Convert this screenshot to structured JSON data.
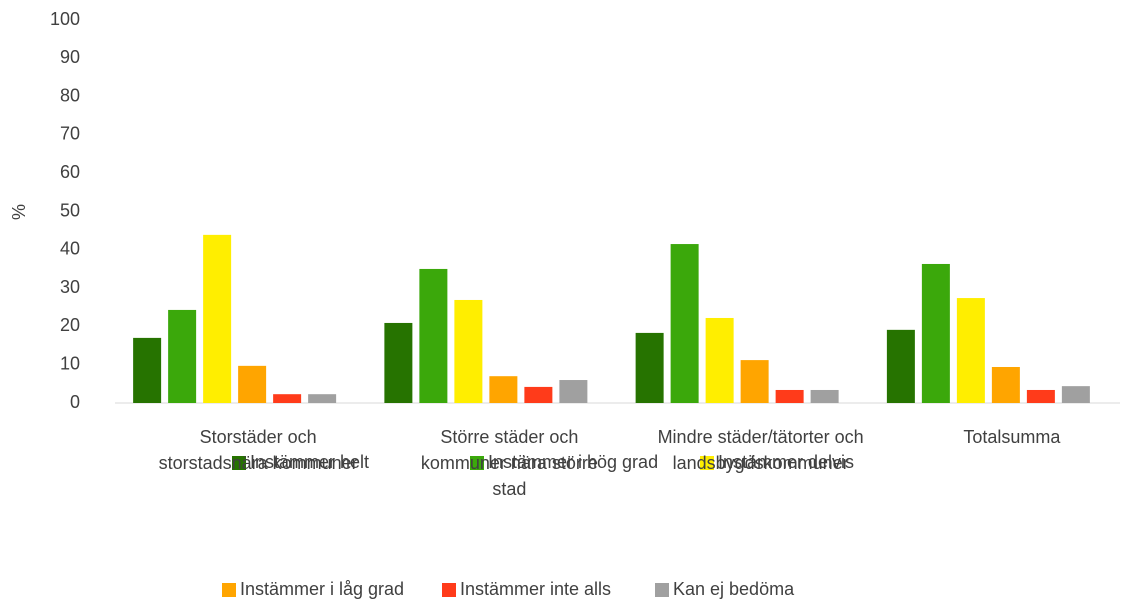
{
  "chart_data": {
    "type": "bar",
    "ylabel": "%",
    "categories": [
      "Storstäder och storstadsnära kommuner",
      "Större städer och kommuner nära större stad",
      "Mindre städer/tätorter och landsbygdskommuner",
      "Totalsumma"
    ],
    "series": [
      {
        "name": "Instämmer helt",
        "color": "#267300",
        "values": [
          17.0,
          20.9,
          18.3,
          19.1
        ]
      },
      {
        "name": "Instämmer i hög grad",
        "color": "#3ba80b",
        "values": [
          24.3,
          35.0,
          41.5,
          36.3
        ]
      },
      {
        "name": "Instämmer delvis",
        "color": "#ffee00",
        "values": [
          43.9,
          26.9,
          22.2,
          27.4
        ]
      },
      {
        "name": "Instämmer i låg grad",
        "color": "#ffa500",
        "values": [
          9.7,
          7.0,
          11.2,
          9.4
        ]
      },
      {
        "name": "Instämmer inte alls",
        "color": "#ff3b1a",
        "values": [
          2.3,
          4.2,
          3.4,
          3.4
        ]
      },
      {
        "name": "Kan ej bedöma",
        "color": "#a0a0a0",
        "values": [
          2.3,
          6.0,
          3.4,
          4.4
        ]
      }
    ],
    "ylim": [
      0,
      100
    ],
    "yticks": [
      0,
      10,
      20,
      30,
      40,
      50,
      60,
      70,
      80,
      90,
      100
    ],
    "grid": false,
    "legend": "bottom"
  }
}
